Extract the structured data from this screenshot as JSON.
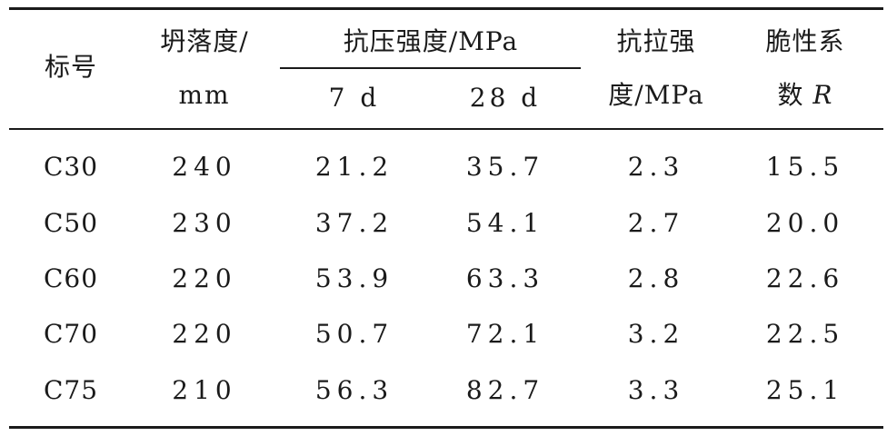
{
  "table": {
    "headers": {
      "grade": "标号",
      "slump_line1": "坍落度/",
      "slump_line2": "mm",
      "compressive_group": "抗压强度/MPa",
      "compressive_7d": "7 d",
      "compressive_28d": "28 d",
      "tensile_line1": "抗拉强",
      "tensile_line2": "度/MPa",
      "brittleness_line1": "脆性系",
      "brittleness_line2_prefix": "数",
      "brittleness_line2_symbol": "R"
    },
    "rows": [
      {
        "grade": "C30",
        "slump": "240",
        "comp_7d": "21.2",
        "comp_28d": "35.7",
        "tensile": "2.3",
        "brittleness": "15.5"
      },
      {
        "grade": "C50",
        "slump": "230",
        "comp_7d": "37.2",
        "comp_28d": "54.1",
        "tensile": "2.7",
        "brittleness": "20.0"
      },
      {
        "grade": "C60",
        "slump": "220",
        "comp_7d": "53.9",
        "comp_28d": "63.3",
        "tensile": "2.8",
        "brittleness": "22.6"
      },
      {
        "grade": "C70",
        "slump": "220",
        "comp_7d": "50.7",
        "comp_28d": "72.1",
        "tensile": "3.2",
        "brittleness": "22.5"
      },
      {
        "grade": "C75",
        "slump": "210",
        "comp_7d": "56.3",
        "comp_28d": "82.7",
        "tensile": "3.3",
        "brittleness": "25.1"
      }
    ]
  }
}
